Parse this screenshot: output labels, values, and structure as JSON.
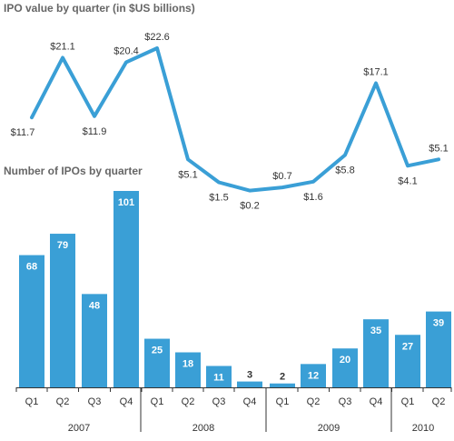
{
  "chart_data": [
    {
      "type": "line",
      "title": "IPO value by quarter (in $US billions)",
      "categories": [
        "2007 Q1",
        "2007 Q2",
        "2007 Q3",
        "2007 Q4",
        "2008 Q1",
        "2008 Q2",
        "2008 Q3",
        "2008 Q4",
        "2009 Q1",
        "2009 Q2",
        "2009 Q3",
        "2009 Q4",
        "2010 Q1",
        "2010 Q2"
      ],
      "values": [
        11.7,
        21.1,
        11.9,
        20.4,
        22.6,
        5.1,
        1.5,
        0.2,
        0.7,
        1.6,
        5.8,
        17.1,
        4.1,
        5.1
      ],
      "value_labels": [
        "$11.7",
        "$21.1",
        "$11.9",
        "$20.4",
        "$22.6",
        "$5.1",
        "$1.5",
        "$0.2",
        "$0.7",
        "$1.6",
        "$5.8",
        "$17.1",
        "$4.1",
        "$5.1"
      ],
      "color": "#3a9fd6"
    },
    {
      "type": "bar",
      "title": "Number of IPOs by quarter",
      "categories": [
        "2007 Q1",
        "2007 Q2",
        "2007 Q3",
        "2007 Q4",
        "2008 Q1",
        "2008 Q2",
        "2008 Q3",
        "2008 Q4",
        "2009 Q1",
        "2009 Q2",
        "2009 Q3",
        "2009 Q4",
        "2010 Q1",
        "2010 Q2"
      ],
      "quarter_labels": [
        "Q1",
        "Q2",
        "Q3",
        "Q4",
        "Q1",
        "Q2",
        "Q3",
        "Q4",
        "Q1",
        "Q2",
        "Q3",
        "Q4",
        "Q1",
        "Q2"
      ],
      "values": [
        68,
        79,
        48,
        101,
        25,
        18,
        11,
        3,
        2,
        12,
        20,
        35,
        27,
        39
      ],
      "years": [
        "2007",
        "2008",
        "2009",
        "2010"
      ],
      "color": "#3a9fd6"
    }
  ]
}
